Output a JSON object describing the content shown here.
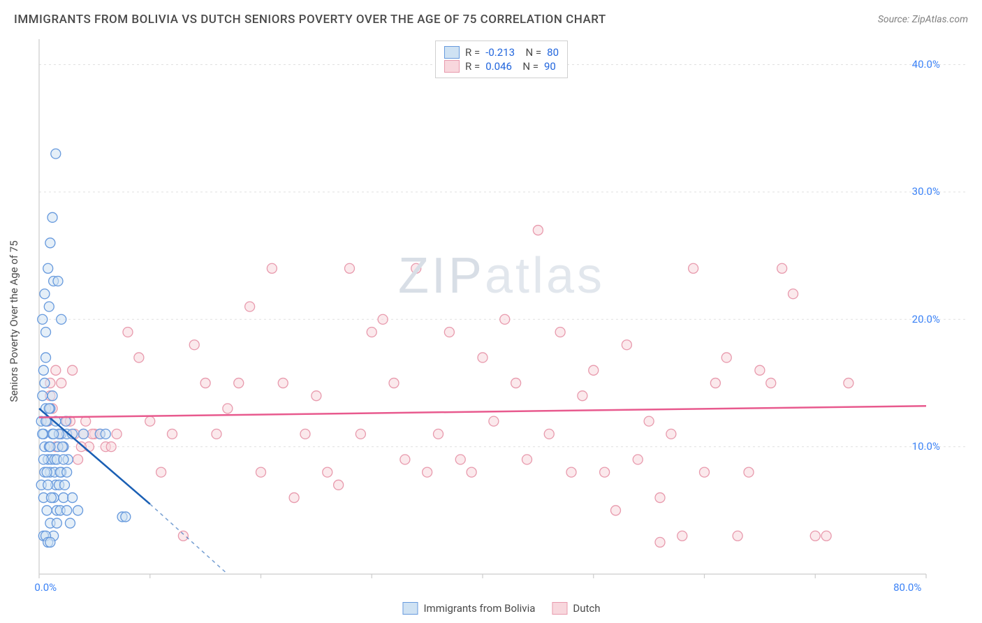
{
  "header": {
    "title": "IMMIGRANTS FROM BOLIVIA VS DUTCH SENIORS POVERTY OVER THE AGE OF 75 CORRELATION CHART",
    "source": "Source: ZipAtlas.com"
  },
  "watermark": {
    "bold": "ZIP",
    "light": "atlas"
  },
  "chart": {
    "type": "scatter",
    "ylabel": "Seniors Poverty Over the Age of 75",
    "xlim": [
      0,
      80
    ],
    "ylim": [
      0,
      42
    ],
    "x_ticks": [
      0,
      10,
      20,
      30,
      40,
      50,
      60,
      70,
      80
    ],
    "x_tick_labels": {
      "0": "0.0%",
      "80": "80.0%"
    },
    "y_ticks": [
      10,
      20,
      30,
      40
    ],
    "y_tick_labels": {
      "10": "10.0%",
      "20": "20.0%",
      "30": "30.0%",
      "40": "40.0%"
    },
    "background_color": "#ffffff",
    "grid_color": "#e0e0e0",
    "axis_color": "#cccccc",
    "marker_radius": 7,
    "marker_stroke_width": 1.3,
    "series": [
      {
        "name": "Immigrants from Bolivia",
        "fill": "#cfe2f3",
        "stroke": "#6699dd",
        "line_color": "#1a5fb4",
        "r_value": "-0.213",
        "n_value": "80",
        "trend": {
          "x1": 0,
          "y1": 13.0,
          "x2": 10,
          "y2": 5.5,
          "dash_to_x": 17,
          "dash_to_y": 0
        },
        "points": [
          [
            0.2,
            12
          ],
          [
            0.3,
            14
          ],
          [
            0.5,
            10
          ],
          [
            0.4,
            11
          ],
          [
            0.6,
            13
          ],
          [
            0.8,
            9
          ],
          [
            1.0,
            8
          ],
          [
            0.5,
            15
          ],
          [
            1.2,
            11
          ],
          [
            1.5,
            7
          ],
          [
            0.7,
            12
          ],
          [
            0.9,
            10
          ],
          [
            1.1,
            9
          ],
          [
            1.3,
            6
          ],
          [
            1.6,
            5
          ],
          [
            2.0,
            11
          ],
          [
            0.4,
            16
          ],
          [
            0.6,
            17
          ],
          [
            1.0,
            13
          ],
          [
            1.4,
            8
          ],
          [
            1.8,
            7
          ],
          [
            2.2,
            10
          ],
          [
            2.5,
            11
          ],
          [
            3.0,
            11
          ],
          [
            0.3,
            20
          ],
          [
            0.5,
            22
          ],
          [
            0.8,
            24
          ],
          [
            1.0,
            26
          ],
          [
            1.2,
            28
          ],
          [
            1.5,
            33
          ],
          [
            0.6,
            19
          ],
          [
            0.9,
            21
          ],
          [
            1.3,
            23
          ],
          [
            1.7,
            23
          ],
          [
            2.0,
            20
          ],
          [
            0.2,
            7
          ],
          [
            0.4,
            6
          ],
          [
            0.7,
            5
          ],
          [
            1.0,
            4
          ],
          [
            1.3,
            3
          ],
          [
            1.6,
            4
          ],
          [
            1.9,
            5
          ],
          [
            2.2,
            6
          ],
          [
            2.5,
            5
          ],
          [
            2.8,
            4
          ],
          [
            3.0,
            6
          ],
          [
            3.5,
            5
          ],
          [
            4.0,
            11
          ],
          [
            0.5,
            8
          ],
          [
            0.8,
            7
          ],
          [
            1.1,
            6
          ],
          [
            1.4,
            9
          ],
          [
            1.7,
            10
          ],
          [
            2.0,
            8
          ],
          [
            2.3,
            7
          ],
          [
            2.6,
            9
          ],
          [
            0.3,
            11
          ],
          [
            0.6,
            12
          ],
          [
            0.9,
            13
          ],
          [
            1.2,
            14
          ],
          [
            1.5,
            12
          ],
          [
            1.8,
            11
          ],
          [
            2.1,
            10
          ],
          [
            2.4,
            12
          ],
          [
            0.4,
            9
          ],
          [
            0.7,
            8
          ],
          [
            1.0,
            10
          ],
          [
            1.3,
            11
          ],
          [
            1.6,
            9
          ],
          [
            1.9,
            8
          ],
          [
            2.2,
            9
          ],
          [
            2.5,
            8
          ],
          [
            5.5,
            11
          ],
          [
            6.0,
            11
          ],
          [
            7.5,
            4.5
          ],
          [
            7.8,
            4.5
          ],
          [
            0.4,
            3
          ],
          [
            0.6,
            3
          ],
          [
            0.8,
            2.5
          ],
          [
            1.0,
            2.5
          ]
        ]
      },
      {
        "name": "Dutch",
        "fill": "#f8d7dd",
        "stroke": "#e89aad",
        "line_color": "#e85a8e",
        "r_value": "0.046",
        "n_value": "90",
        "trend": {
          "x1": 0,
          "y1": 12.3,
          "x2": 80,
          "y2": 13.2
        },
        "points": [
          [
            1,
            15
          ],
          [
            2,
            11
          ],
          [
            3,
            16
          ],
          [
            4,
            11
          ],
          [
            5,
            11
          ],
          [
            6,
            10
          ],
          [
            7,
            11
          ],
          [
            8,
            19
          ],
          [
            9,
            17
          ],
          [
            10,
            12
          ],
          [
            11,
            8
          ],
          [
            12,
            11
          ],
          [
            13,
            3
          ],
          [
            14,
            18
          ],
          [
            15,
            15
          ],
          [
            16,
            11
          ],
          [
            17,
            13
          ],
          [
            18,
            15
          ],
          [
            19,
            21
          ],
          [
            20,
            8
          ],
          [
            21,
            24
          ],
          [
            22,
            15
          ],
          [
            23,
            6
          ],
          [
            24,
            11
          ],
          [
            25,
            14
          ],
          [
            26,
            8
          ],
          [
            27,
            7
          ],
          [
            28,
            24
          ],
          [
            29,
            11
          ],
          [
            30,
            19
          ],
          [
            31,
            20
          ],
          [
            32,
            15
          ],
          [
            33,
            9
          ],
          [
            34,
            24
          ],
          [
            35,
            8
          ],
          [
            36,
            11
          ],
          [
            37,
            19
          ],
          [
            38,
            9
          ],
          [
            39,
            8
          ],
          [
            40,
            17
          ],
          [
            41,
            12
          ],
          [
            42,
            20
          ],
          [
            43,
            15
          ],
          [
            44,
            9
          ],
          [
            45,
            27
          ],
          [
            46,
            11
          ],
          [
            47,
            19
          ],
          [
            48,
            8
          ],
          [
            49,
            14
          ],
          [
            50,
            16
          ],
          [
            51,
            8
          ],
          [
            52,
            5
          ],
          [
            53,
            18
          ],
          [
            54,
            9
          ],
          [
            55,
            12
          ],
          [
            56,
            6
          ],
          [
            57,
            11
          ],
          [
            58,
            3
          ],
          [
            59,
            24
          ],
          [
            60,
            8
          ],
          [
            61,
            15
          ],
          [
            62,
            17
          ],
          [
            63,
            3
          ],
          [
            64,
            8
          ],
          [
            65,
            16
          ],
          [
            66,
            15
          ],
          [
            67,
            24
          ],
          [
            68,
            22
          ],
          [
            70,
            3
          ],
          [
            71,
            3
          ],
          [
            73,
            15
          ],
          [
            56,
            2.5
          ],
          [
            1.5,
            10
          ],
          [
            2.5,
            12
          ],
          [
            3.5,
            9
          ],
          [
            4.5,
            10
          ],
          [
            5.5,
            11
          ],
          [
            6.5,
            10
          ],
          [
            0.8,
            12
          ],
          [
            1.2,
            13
          ],
          [
            1.8,
            11
          ],
          [
            2.2,
            10
          ],
          [
            2.8,
            12
          ],
          [
            3.2,
            11
          ],
          [
            3.8,
            10
          ],
          [
            4.2,
            12
          ],
          [
            4.8,
            11
          ],
          [
            1.0,
            14
          ],
          [
            1.5,
            16
          ],
          [
            2.0,
            15
          ]
        ]
      }
    ],
    "bottom_legend": [
      {
        "label": "Immigrants from Bolivia",
        "fill": "#cfe2f3",
        "stroke": "#6699dd"
      },
      {
        "label": "Dutch",
        "fill": "#f8d7dd",
        "stroke": "#e89aad"
      }
    ]
  }
}
